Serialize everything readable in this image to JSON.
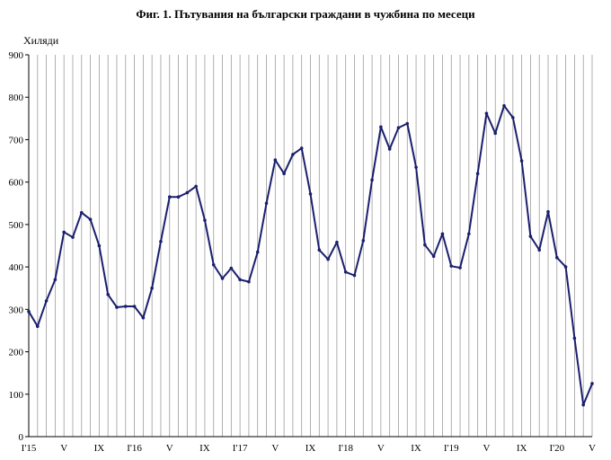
{
  "title": "Фиг. 1. Пътувания на български граждани в чужбина по месеци",
  "unit_label": "Хиляди",
  "colors": {
    "line": "#1a1f6e",
    "grid": "#9c9c9c",
    "axis": "#000000"
  },
  "chart_data": {
    "type": "line",
    "title": "Фиг. 1. Пътувания на български граждани в чужбина по месеци",
    "ylabel": "Хиляди",
    "ylim": [
      0,
      900
    ],
    "y_ticks": [
      "0",
      "100",
      "200",
      "300",
      "400",
      "500",
      "600",
      "700",
      "800",
      "900"
    ],
    "grid": "vertical",
    "x_tick_labels": [
      {
        "index": 0,
        "label": "I'15"
      },
      {
        "index": 4,
        "label": "V"
      },
      {
        "index": 8,
        "label": "IX"
      },
      {
        "index": 12,
        "label": "I'16"
      },
      {
        "index": 16,
        "label": "V"
      },
      {
        "index": 20,
        "label": "IX"
      },
      {
        "index": 24,
        "label": "I'17"
      },
      {
        "index": 28,
        "label": "V"
      },
      {
        "index": 32,
        "label": "IX"
      },
      {
        "index": 36,
        "label": "I'18"
      },
      {
        "index": 40,
        "label": "V"
      },
      {
        "index": 44,
        "label": "IX"
      },
      {
        "index": 48,
        "label": "I'19"
      },
      {
        "index": 52,
        "label": "V"
      },
      {
        "index": 56,
        "label": "IX"
      },
      {
        "index": 60,
        "label": "I'20"
      },
      {
        "index": 64,
        "label": "V"
      }
    ],
    "x": [
      "2015-01",
      "2015-02",
      "2015-03",
      "2015-04",
      "2015-05",
      "2015-06",
      "2015-07",
      "2015-08",
      "2015-09",
      "2015-10",
      "2015-11",
      "2015-12",
      "2016-01",
      "2016-02",
      "2016-03",
      "2016-04",
      "2016-05",
      "2016-06",
      "2016-07",
      "2016-08",
      "2016-09",
      "2016-10",
      "2016-11",
      "2016-12",
      "2017-01",
      "2017-02",
      "2017-03",
      "2017-04",
      "2017-05",
      "2017-06",
      "2017-07",
      "2017-08",
      "2017-09",
      "2017-10",
      "2017-11",
      "2017-12",
      "2018-01",
      "2018-02",
      "2018-03",
      "2018-04",
      "2018-05",
      "2018-06",
      "2018-07",
      "2018-08",
      "2018-09",
      "2018-10",
      "2018-11",
      "2018-12",
      "2019-01",
      "2019-02",
      "2019-03",
      "2019-04",
      "2019-05",
      "2019-06",
      "2019-07",
      "2019-08",
      "2019-09",
      "2019-10",
      "2019-11",
      "2019-12",
      "2020-01",
      "2020-02",
      "2020-03",
      "2020-04",
      "2020-05"
    ],
    "series": [
      {
        "values": [
          295,
          260,
          320,
          370,
          482,
          470,
          528,
          512,
          450,
          335,
          305,
          307,
          307,
          280,
          350,
          460,
          565,
          565,
          575,
          590,
          510,
          405,
          373,
          397,
          370,
          365,
          435,
          550,
          652,
          620,
          665,
          680,
          572,
          440,
          418,
          458,
          388,
          380,
          462,
          605,
          730,
          678,
          728,
          738,
          635,
          452,
          425,
          478,
          402,
          398,
          478,
          620,
          762,
          715,
          780,
          752,
          650,
          472,
          440,
          530,
          422,
          400,
          232,
          75,
          125
        ]
      }
    ]
  }
}
